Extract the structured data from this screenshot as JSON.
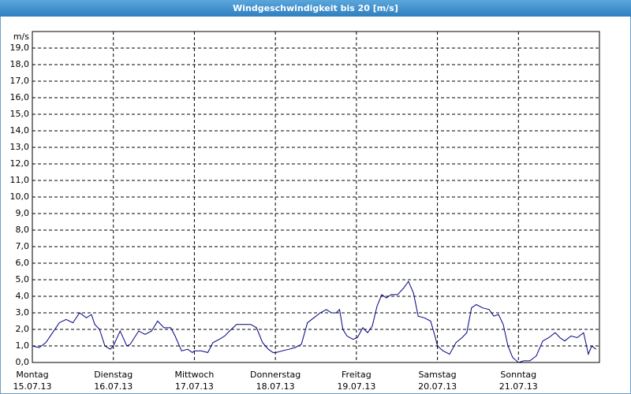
{
  "chart_data": {
    "type": "line",
    "title": "Windgeschwindigkeit bis 20 [m/s]",
    "y_unit": "m/s",
    "xlim": [
      0,
      168
    ],
    "xticks": [
      {
        "value": 0,
        "label": "Montag",
        "date": "15.07.13"
      },
      {
        "value": 24,
        "label": "Dienstag",
        "date": "16.07.13"
      },
      {
        "value": 48,
        "label": "Mittwoch",
        "date": "17.07.13"
      },
      {
        "value": 72,
        "label": "Donnerstag",
        "date": "18.07.13"
      },
      {
        "value": 96,
        "label": "Freitag",
        "date": "19.07.13"
      },
      {
        "value": 120,
        "label": "Samstag",
        "date": "20.07.13"
      },
      {
        "value": 144,
        "label": "Sonntag",
        "date": "21.07.13"
      }
    ],
    "ylim": [
      0,
      20
    ],
    "yticks": [
      {
        "value": 0,
        "label": "0,0"
      },
      {
        "value": 1,
        "label": "1,0"
      },
      {
        "value": 2,
        "label": "2,0"
      },
      {
        "value": 3,
        "label": "3,0"
      },
      {
        "value": 4,
        "label": "4,0"
      },
      {
        "value": 5,
        "label": "5,0"
      },
      {
        "value": 6,
        "label": "6,0"
      },
      {
        "value": 7,
        "label": "7,0"
      },
      {
        "value": 8,
        "label": "8,0"
      },
      {
        "value": 9,
        "label": "9,0"
      },
      {
        "value": 10,
        "label": "10,0"
      },
      {
        "value": 11,
        "label": "11,0"
      },
      {
        "value": 12,
        "label": "12,0"
      },
      {
        "value": 13,
        "label": "13,0"
      },
      {
        "value": 14,
        "label": "14,0"
      },
      {
        "value": 15,
        "label": "15,0"
      },
      {
        "value": 16,
        "label": "16,0"
      },
      {
        "value": 17,
        "label": "17,0"
      },
      {
        "value": 18,
        "label": "18,0"
      },
      {
        "value": 19,
        "label": "19,0"
      }
    ],
    "grid": true,
    "x": [
      0,
      2,
      4,
      6,
      8,
      10,
      12,
      14,
      16,
      17.5,
      18.5,
      19.9,
      21.5,
      23.1,
      24,
      26,
      28,
      29,
      31.5,
      33.4,
      35.3,
      37.1,
      39,
      41,
      42.3,
      44.2,
      46,
      47.4,
      48,
      50,
      52,
      53.5,
      55.4,
      57,
      58.9,
      60.5,
      62.9,
      64.7,
      66.4,
      68.2,
      69.9,
      71.3,
      72.2,
      74,
      76,
      77.8,
      79.7,
      81.5,
      83.4,
      85.3,
      87.1,
      88.6,
      90,
      91,
      92,
      93.2,
      95,
      96.3,
      97.9,
      99.3,
      100.7,
      102.1,
      103.5,
      104.9,
      106.3,
      108.2,
      110,
      111.4,
      112.9,
      114.3,
      116.1,
      118,
      119.4,
      120,
      121.7,
      123.6,
      125.5,
      127.3,
      128.7,
      130.1,
      131.5,
      133.4,
      135.3,
      136.7,
      138.1,
      139.5,
      140.9,
      142.3,
      144,
      145.6,
      147.4,
      149.3,
      151.2,
      153,
      154.9,
      156.3,
      157.7,
      159.6,
      161.4,
      163.3,
      164.7,
      165.7,
      167
    ],
    "series": [
      {
        "name": "Windgeschwindigkeit",
        "color": "#00007f",
        "values": [
          1.0,
          0.9,
          1.2,
          1.8,
          2.4,
          2.6,
          2.4,
          3.0,
          2.7,
          2.9,
          2.3,
          2.0,
          1.0,
          0.8,
          1.0,
          1.9,
          1.0,
          1.1,
          1.9,
          1.7,
          1.9,
          2.5,
          2.1,
          2.1,
          1.6,
          0.7,
          0.8,
          0.6,
          0.7,
          0.7,
          0.6,
          1.2,
          1.4,
          1.6,
          2.0,
          2.3,
          2.3,
          2.3,
          2.1,
          1.2,
          0.8,
          0.6,
          0.6,
          0.7,
          0.8,
          0.9,
          1.1,
          2.4,
          2.7,
          3.0,
          3.2,
          3.0,
          3.0,
          3.2,
          2.0,
          1.6,
          1.4,
          1.5,
          2.1,
          1.8,
          2.2,
          3.4,
          4.1,
          3.9,
          4.1,
          4.1,
          4.5,
          4.9,
          4.2,
          2.8,
          2.7,
          2.5,
          1.5,
          1.0,
          0.7,
          0.5,
          1.2,
          1.5,
          1.8,
          3.3,
          3.5,
          3.3,
          3.2,
          2.8,
          2.9,
          2.3,
          1.0,
          0.3,
          0.0,
          0.1,
          0.1,
          0.4,
          1.3,
          1.5,
          1.8,
          1.5,
          1.3,
          1.6,
          1.5,
          1.8,
          0.5,
          1.0,
          0.8
        ]
      }
    ]
  }
}
